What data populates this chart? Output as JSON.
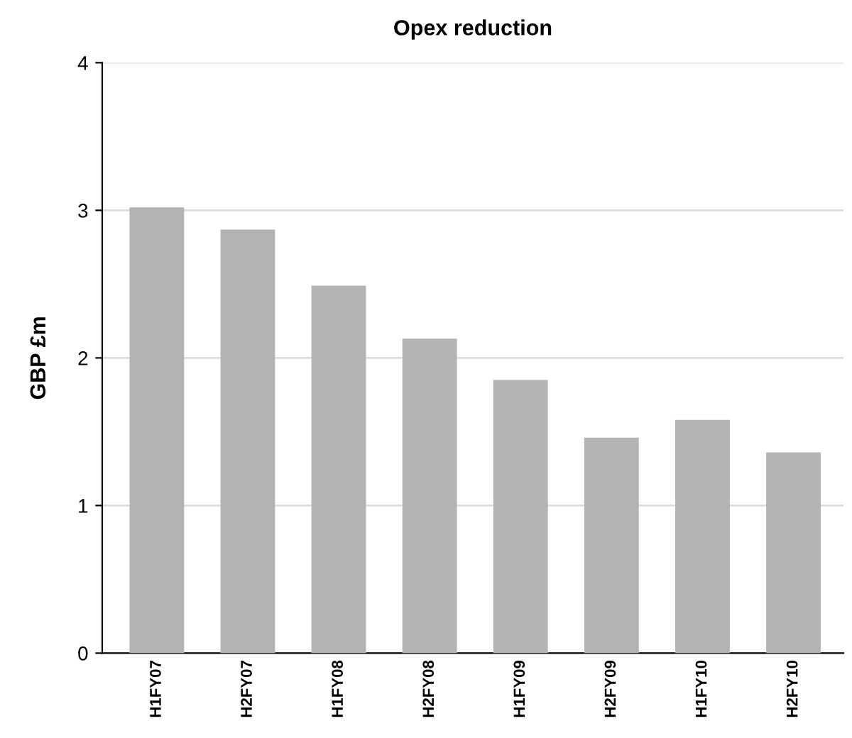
{
  "chart_data": {
    "type": "bar",
    "title": "Opex reduction",
    "ylabel": "GBP £m",
    "categories": [
      "H1FY07",
      "H2FY07",
      "H1FY08",
      "H2FY08",
      "H1FY09",
      "H2FY09",
      "H1FY10",
      "H2FY10"
    ],
    "values": [
      3.02,
      2.87,
      2.49,
      2.13,
      1.85,
      1.46,
      1.58,
      1.36
    ],
    "color": "#b3b3b3",
    "ylim": [
      0,
      4
    ],
    "yticks": [
      0,
      1,
      2,
      3,
      4
    ],
    "grid": "y"
  }
}
